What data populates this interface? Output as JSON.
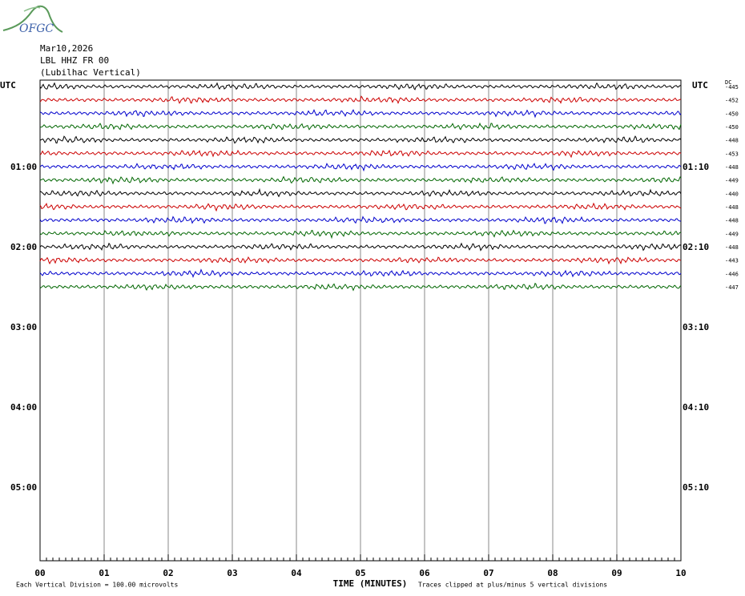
{
  "logo": "OFGC",
  "header": {
    "date": "Mar10,2026",
    "station": "LBL HHZ FR 00",
    "location": "(Lubilhac Vertical)"
  },
  "left_axis": {
    "title": "UTC",
    "labels": [
      "01:00",
      "02:00",
      "03:00",
      "04:00",
      "05:00"
    ]
  },
  "right_axis": {
    "title": "UTC",
    "labels": [
      "01:10",
      "02:10",
      "03:10",
      "04:10",
      "05:10"
    ]
  },
  "dc_title": "DC",
  "traces": [
    {
      "offset": "-445",
      "color": "#000000"
    },
    {
      "offset": "-452",
      "color": "#cc0000"
    },
    {
      "offset": "-450",
      "color": "#0000cc"
    },
    {
      "offset": "-450",
      "color": "#006600"
    },
    {
      "offset": "-448",
      "color": "#000000"
    },
    {
      "offset": "-453",
      "color": "#cc0000"
    },
    {
      "offset": "-448",
      "color": "#0000cc"
    },
    {
      "offset": "-449",
      "color": "#006600"
    },
    {
      "offset": "-440",
      "color": "#000000"
    },
    {
      "offset": "-448",
      "color": "#cc0000"
    },
    {
      "offset": "-448",
      "color": "#0000cc"
    },
    {
      "offset": "-449",
      "color": "#006600"
    },
    {
      "offset": "-448",
      "color": "#000000"
    },
    {
      "offset": "-443",
      "color": "#cc0000"
    },
    {
      "offset": "-446",
      "color": "#0000cc"
    },
    {
      "offset": "-447",
      "color": "#006600"
    }
  ],
  "x_axis": {
    "title": "TIME (MINUTES)",
    "labels": [
      "00",
      "01",
      "02",
      "03",
      "04",
      "05",
      "06",
      "07",
      "08",
      "09",
      "10"
    ]
  },
  "footer": {
    "division": "Each Vertical Division =  100.00 microvolts",
    "clipping": "Traces clipped at plus/minus 5 vertical divisions"
  }
}
